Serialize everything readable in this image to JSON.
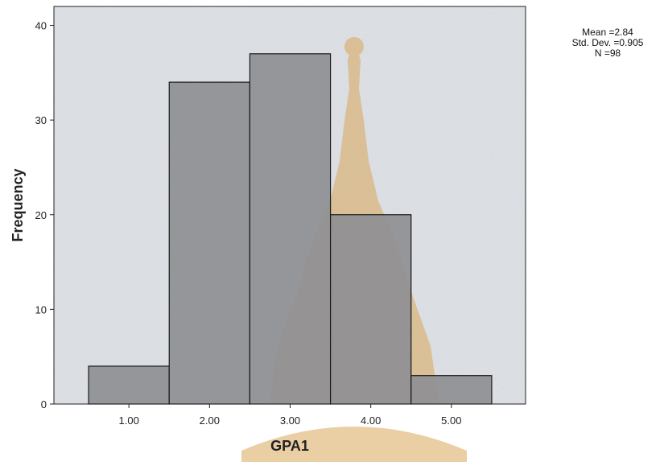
{
  "colors": {
    "plot_background": "#e3e6ea",
    "bar_fill": "#8d8e92",
    "bar_stroke": "#1a1a1a",
    "watermark": "#d9a65a"
  },
  "stats": {
    "mean": "Mean =2.84",
    "std_dev": "Std. Dev. =0.905",
    "n": "N =98"
  },
  "chart_data": {
    "type": "bar",
    "subtype": "histogram",
    "xlabel": "GPA1",
    "ylabel": "Frequency",
    "categories": [
      "1.00",
      "2.00",
      "3.00",
      "4.00",
      "5.00"
    ],
    "bins": [
      {
        "from": 0.5,
        "to": 1.5,
        "value": 4
      },
      {
        "from": 1.5,
        "to": 2.5,
        "value": 34
      },
      {
        "from": 2.5,
        "to": 3.5,
        "value": 37
      },
      {
        "from": 3.5,
        "to": 4.5,
        "value": 20
      },
      {
        "from": 4.5,
        "to": 5.5,
        "value": 3
      }
    ],
    "x_ticks": [
      1,
      2,
      3,
      4,
      5
    ],
    "x_tick_labels": [
      "1.00",
      "2.00",
      "3.00",
      "4.00",
      "5.00"
    ],
    "y_ticks": [
      0,
      10,
      20,
      30,
      40
    ],
    "y_tick_labels": [
      "0",
      "10",
      "20",
      "30",
      "40"
    ],
    "xlim": [
      0.07,
      5.92
    ],
    "ylim": [
      0,
      42
    ],
    "grid": false,
    "legend": "top-right"
  }
}
